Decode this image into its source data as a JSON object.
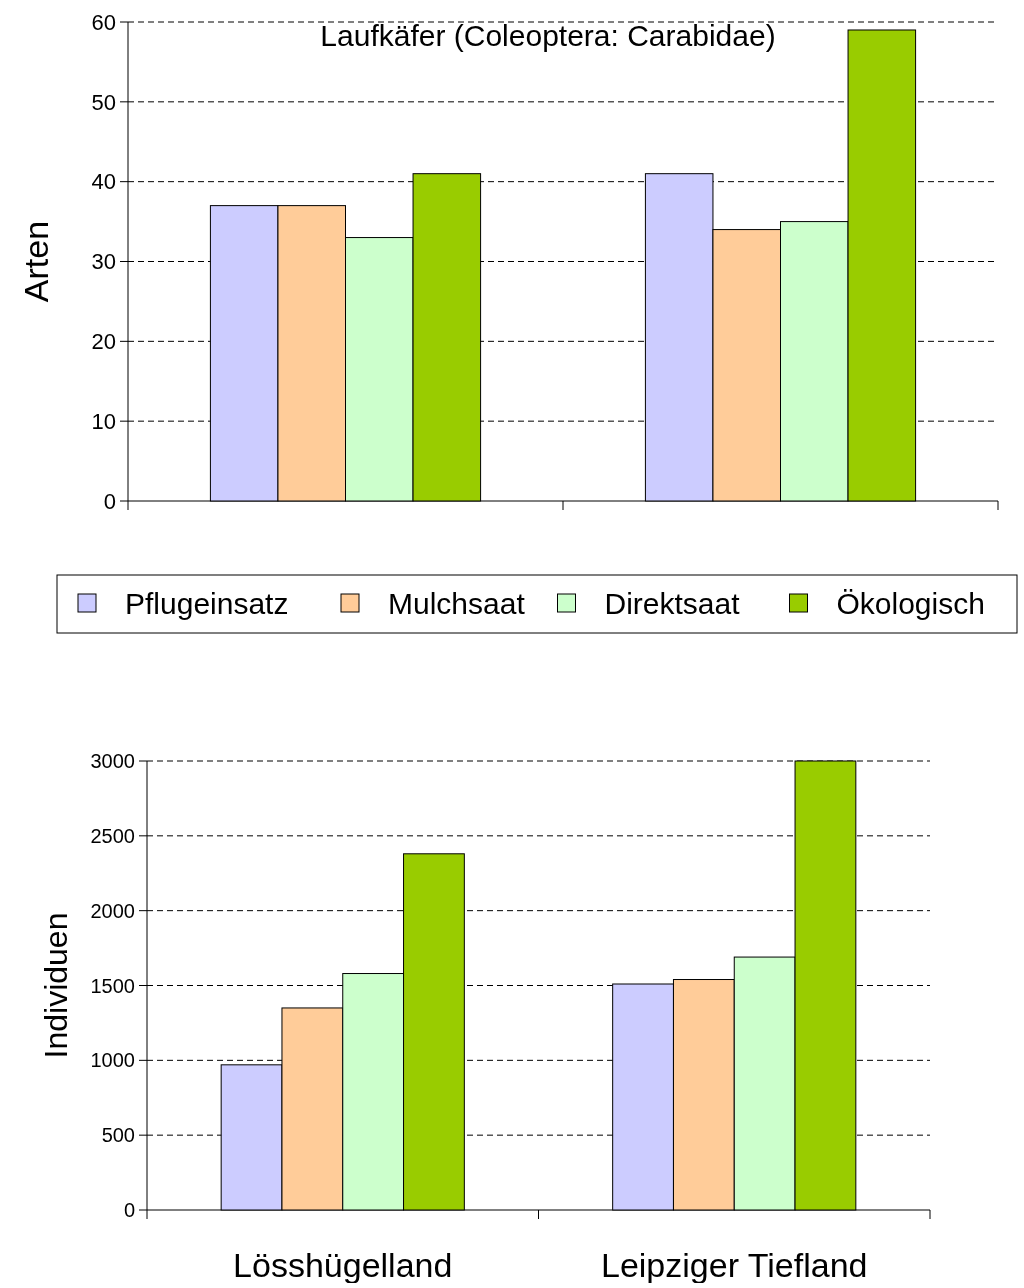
{
  "chart_data": [
    {
      "type": "bar",
      "title": "Laufkäfer (Coleoptera: Carabidae)",
      "ylabel": "Arten",
      "categories": [
        null,
        null
      ],
      "series": [
        {
          "name": "Pflugeinsatz",
          "color": "#ccccff",
          "values": [
            37,
            41
          ]
        },
        {
          "name": "Mulchsaat",
          "color": "#ffcc99",
          "values": [
            37,
            34
          ]
        },
        {
          "name": "Direktsaat",
          "color": "#ccffcc",
          "values": [
            33,
            35
          ]
        },
        {
          "name": "Ökologisch",
          "color": "#99cc00",
          "values": [
            41,
            59
          ]
        }
      ],
      "ylim": [
        0,
        60
      ],
      "yticks": [
        0,
        10,
        20,
        30,
        40,
        50,
        60
      ],
      "grid": "y",
      "legend": "bottom"
    },
    {
      "type": "bar",
      "ylabel": "Individuen",
      "categories": [
        "Lösshügelland",
        "Leipziger Tiefland"
      ],
      "series": [
        {
          "color": "#ccccff",
          "values": [
            970,
            1510
          ]
        },
        {
          "color": "#ffcc99",
          "values": [
            1350,
            1540
          ]
        },
        {
          "color": "#ccffcc",
          "values": [
            1580,
            1690
          ]
        },
        {
          "color": "#99cc00",
          "values": [
            2380,
            3000
          ]
        }
      ],
      "ylim": [
        0,
        3000
      ],
      "yticks": [
        0,
        500,
        1000,
        1500,
        2000,
        2500,
        3000
      ],
      "grid": "y"
    }
  ]
}
